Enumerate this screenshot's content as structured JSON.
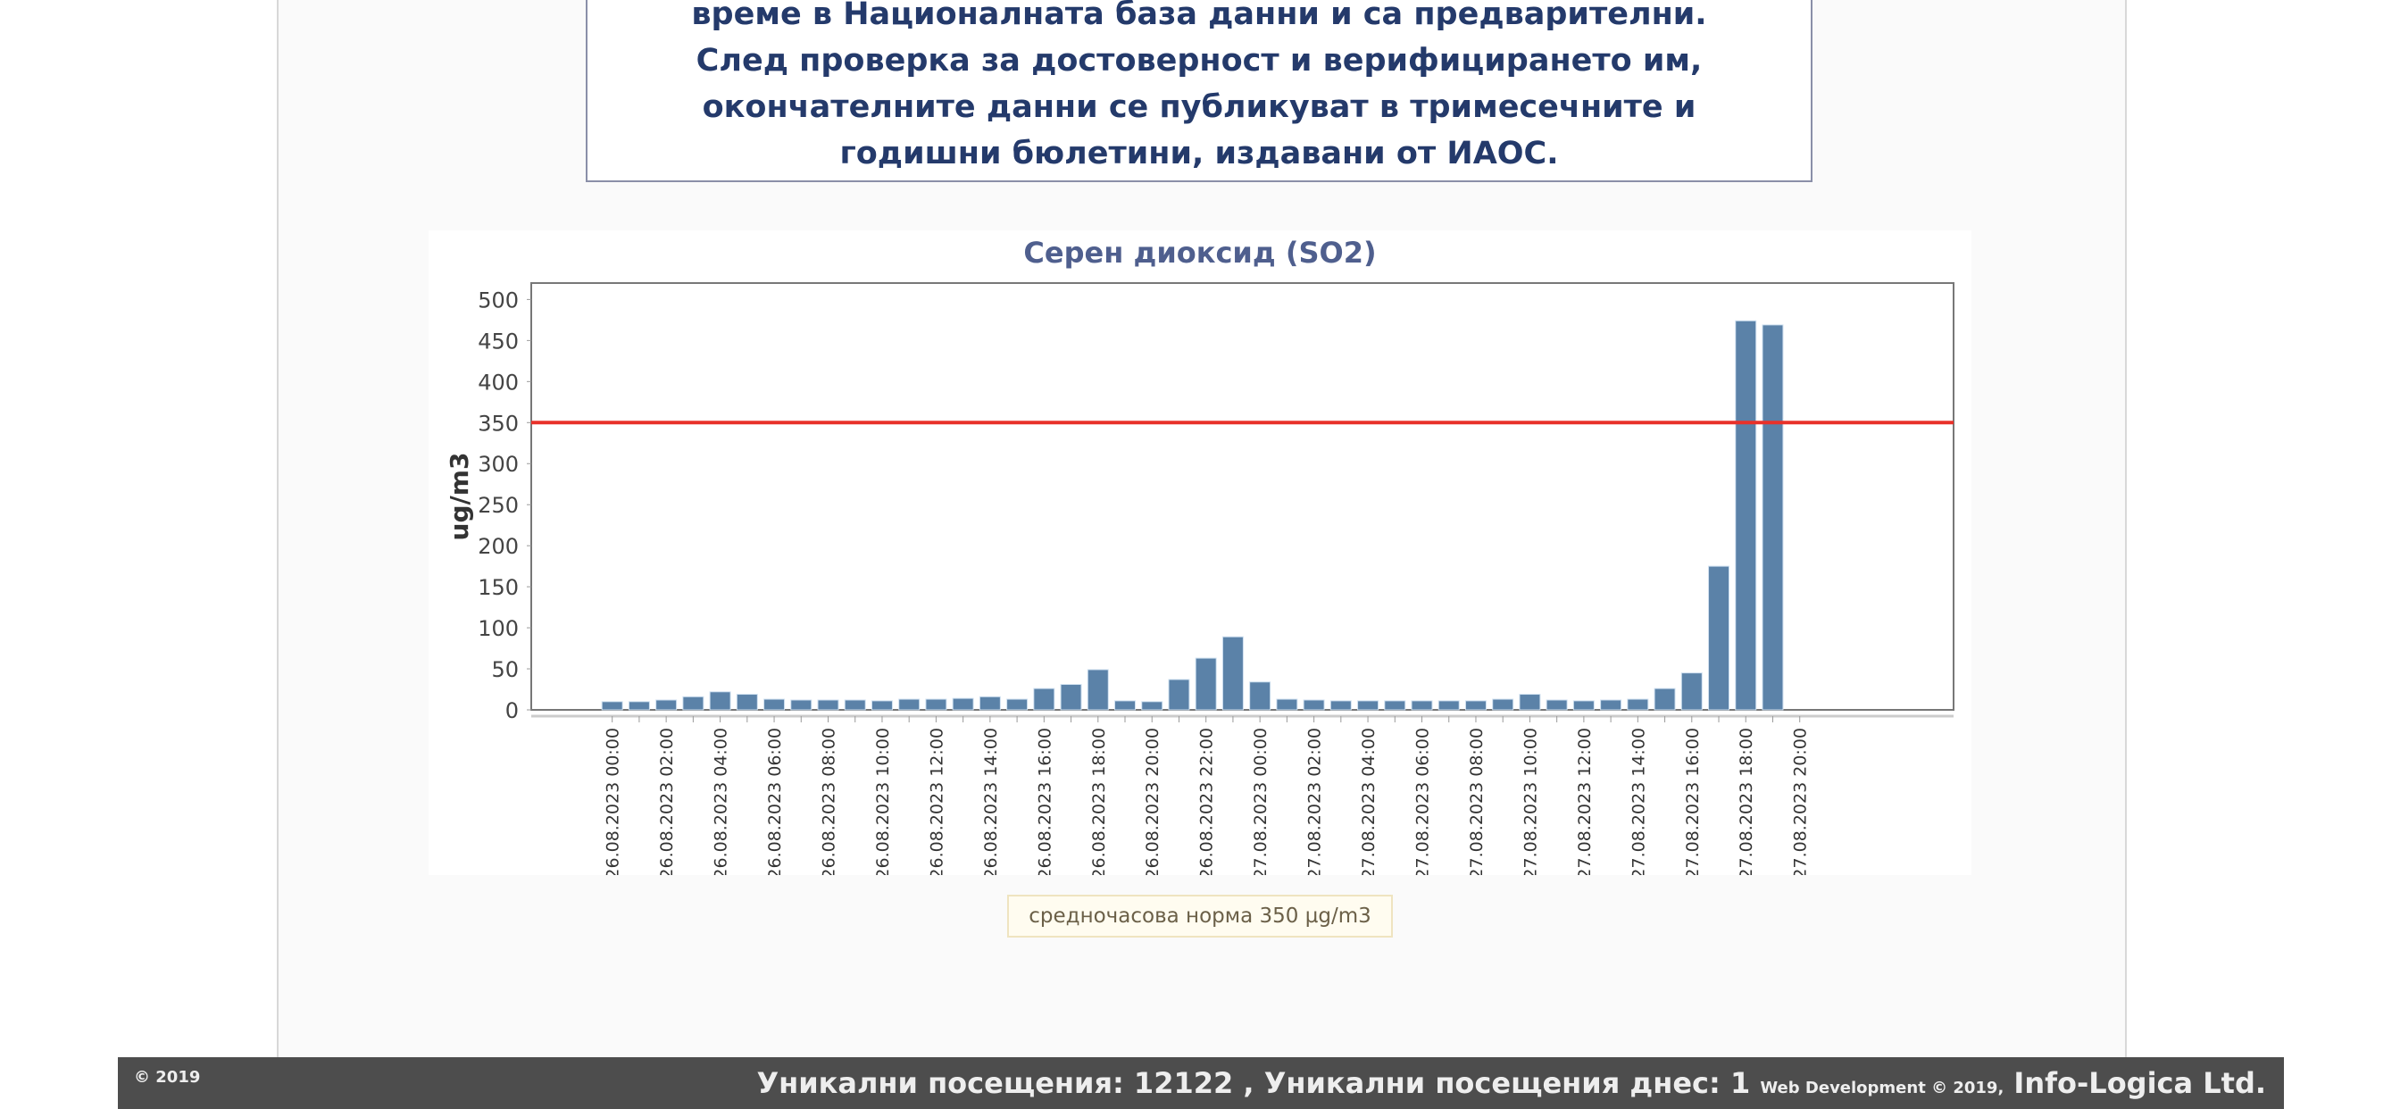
{
  "notice": {
    "lines": [
      "време в Националната база данни и са предварителни.",
      "След проверка за достоверност и верифицирането им,",
      "окончателните данни се публикуват в тримесечните и",
      "годишни бюлетини, издавани от ИАОС."
    ]
  },
  "legend_label": "средночасова норма 350 µg/m3",
  "footer": {
    "copyright": "© 2019",
    "visits": "Уникални посещения: 12122 , Уникални посещения днес: 1",
    "webdev": "Web Development © 2019,",
    "company": "Info-Logica Ltd."
  },
  "colors": {
    "bar": "#5b82a8",
    "limit": "#e8312a",
    "title": "#4f5f8e"
  },
  "chart_data": {
    "type": "bar",
    "title": "Серен диоксид (SO2)",
    "xlabel": "",
    "ylabel": "ug/m3",
    "ylim": [
      0,
      520
    ],
    "yticks": [
      0,
      50,
      100,
      150,
      200,
      250,
      300,
      350,
      400,
      450,
      500
    ],
    "limit_line": 350,
    "grid": false,
    "xticks": [
      "26.08.2023 00:00",
      "26.08.2023 02:00",
      "26.08.2023 04:00",
      "26.08.2023 06:00",
      "26.08.2023 08:00",
      "26.08.2023 10:00",
      "26.08.2023 12:00",
      "26.08.2023 14:00",
      "26.08.2023 16:00",
      "26.08.2023 18:00",
      "26.08.2023 20:00",
      "26.08.2023 22:00",
      "27.08.2023 00:00",
      "27.08.2023 02:00",
      "27.08.2023 04:00",
      "27.08.2023 06:00",
      "27.08.2023 08:00",
      "27.08.2023 10:00",
      "27.08.2023 12:00",
      "27.08.2023 14:00",
      "27.08.2023 16:00",
      "27.08.2023 18:00",
      "27.08.2023 20:00"
    ],
    "hours_from_start": [
      0,
      1,
      2,
      3,
      4,
      5,
      6,
      7,
      8,
      9,
      10,
      11,
      12,
      13,
      14,
      15,
      16,
      17,
      18,
      19,
      20,
      21,
      22,
      23,
      24,
      25,
      26,
      27,
      28,
      29,
      30,
      31,
      32,
      33,
      34,
      35,
      36,
      37,
      38,
      39,
      40,
      41,
      42,
      43
    ],
    "values": [
      10,
      10,
      12,
      16,
      22,
      19,
      13,
      12,
      12,
      12,
      11,
      13,
      13,
      14,
      16,
      13,
      26,
      31,
      49,
      11,
      10,
      37,
      63,
      89,
      34,
      13,
      12,
      11,
      11,
      11,
      11,
      11,
      11,
      13,
      19,
      12,
      11,
      12,
      13,
      26,
      45,
      175,
      474,
      469
    ],
    "xlim_hours": [
      -3,
      49.7
    ]
  }
}
